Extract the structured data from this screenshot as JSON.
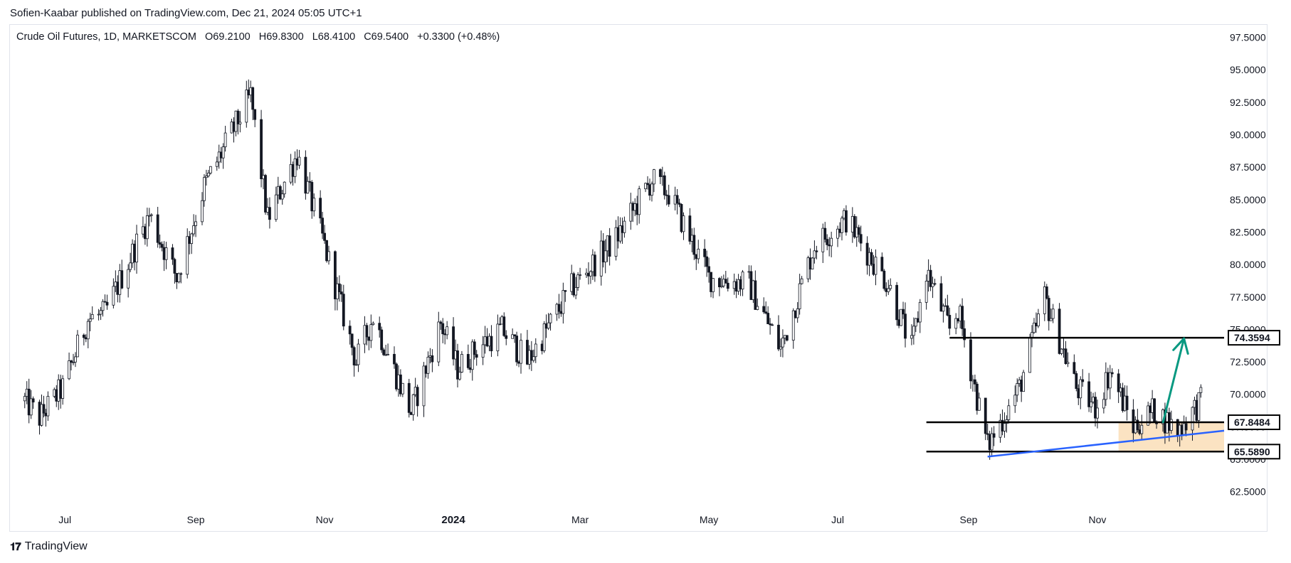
{
  "publisher": "Sofien-Kaabar published on TradingView.com, Dec 21, 2024 05:05 UTC+1",
  "legend": {
    "symbol": "Crude Oil Futures, 1D, MARKETSCOM",
    "open": "O69.2100",
    "high": "H69.8300",
    "low": "L68.4100",
    "close": "C69.5400",
    "change": "+0.3300 (+0.48%)"
  },
  "footer": {
    "brand": "TradingView"
  },
  "chart_data": {
    "type": "candlestick",
    "title": "Crude Oil Futures, 1D, MARKETSCOM",
    "y_axis": {
      "range": [
        61.5,
        98.4
      ],
      "ticks": [
        "97.5000",
        "95.0000",
        "92.5000",
        "90.0000",
        "87.5000",
        "85.0000",
        "82.5000",
        "80.0000",
        "77.5000",
        "75.0000",
        "72.5000",
        "70.0000",
        "67.5000",
        "65.0000",
        "62.5000"
      ]
    },
    "x_axis": {
      "range": [
        "2023-06-05",
        "2024-12-31"
      ],
      "ticks": [
        {
          "label": "Jul",
          "date": "2023-07-01"
        },
        {
          "label": "Sep",
          "date": "2023-09-01"
        },
        {
          "label": "Nov",
          "date": "2023-11-01"
        },
        {
          "label": "2024",
          "date": "2024-01-01",
          "bold": true
        },
        {
          "label": "Mar",
          "date": "2024-03-01"
        },
        {
          "label": "May",
          "date": "2024-05-01"
        },
        {
          "label": "Jul",
          "date": "2024-07-01"
        },
        {
          "label": "Sep",
          "date": "2024-09-01"
        },
        {
          "label": "Nov",
          "date": "2024-11-01"
        }
      ]
    },
    "anchors": [
      [
        "2023-06-12",
        69.5
      ],
      [
        "2023-06-19",
        68.2
      ],
      [
        "2023-06-30",
        70.5
      ],
      [
        "2023-07-12",
        75.8
      ],
      [
        "2023-07-20",
        76.2
      ],
      [
        "2023-08-10",
        83.8
      ],
      [
        "2023-08-23",
        79.0
      ],
      [
        "2023-09-05",
        86.0
      ],
      [
        "2023-09-27",
        93.0
      ],
      [
        "2023-10-05",
        83.5
      ],
      [
        "2023-10-19",
        88.5
      ],
      [
        "2023-10-31",
        82.0
      ],
      [
        "2023-11-16",
        72.5
      ],
      [
        "2023-11-24",
        76.0
      ],
      [
        "2023-12-12",
        68.6
      ],
      [
        "2023-12-26",
        75.5
      ],
      [
        "2024-01-03",
        72.0
      ],
      [
        "2024-01-12",
        73.5
      ],
      [
        "2024-01-24",
        75.0
      ],
      [
        "2024-02-05",
        72.5
      ],
      [
        "2024-02-26",
        78.2
      ],
      [
        "2024-03-18",
        82.0
      ],
      [
        "2024-04-04",
        86.5
      ],
      [
        "2024-04-12",
        85.5
      ],
      [
        "2024-05-01",
        79.0
      ],
      [
        "2024-05-20",
        78.5
      ],
      [
        "2024-06-04",
        73.5
      ],
      [
        "2024-06-20",
        81.5
      ],
      [
        "2024-07-05",
        83.5
      ],
      [
        "2024-07-25",
        78.5
      ],
      [
        "2024-08-05",
        73.5
      ],
      [
        "2024-08-12",
        79.5
      ],
      [
        "2024-08-23",
        75.0
      ],
      [
        "2024-08-27",
        76.5
      ],
      [
        "2024-09-10",
        66.0
      ],
      [
        "2024-09-25",
        70.5
      ],
      [
        "2024-10-07",
        77.5
      ],
      [
        "2024-10-22",
        70.5
      ],
      [
        "2024-10-31",
        69.0
      ],
      [
        "2024-11-07",
        71.8
      ],
      [
        "2024-11-18",
        67.5
      ],
      [
        "2024-11-28",
        68.8
      ],
      [
        "2024-12-09",
        67.2
      ],
      [
        "2024-12-20",
        69.5
      ]
    ],
    "annotations": {
      "horizontal_levels": [
        {
          "price": 74.3594,
          "label": "74.3594",
          "from": "2024-08-23"
        },
        {
          "price": 67.8484,
          "label": "67.8484",
          "from": "2024-08-12"
        },
        {
          "price": 65.589,
          "label": "65.5890",
          "from": "2024-08-12"
        }
      ],
      "support_zone": {
        "from": "2024-11-11",
        "to": "2024-12-31",
        "price_low": 65.589,
        "price_high": 67.8484,
        "color": "#fbe3c2"
      },
      "trendline": {
        "start": [
          "2024-09-10",
          65.2
        ],
        "end": [
          "2024-12-31",
          67.2
        ],
        "color": "#2962ff"
      },
      "arrow": {
        "start": [
          "2024-12-02",
          67.8
        ],
        "end": [
          "2024-12-12",
          74.3
        ],
        "color": "#089981"
      }
    }
  }
}
